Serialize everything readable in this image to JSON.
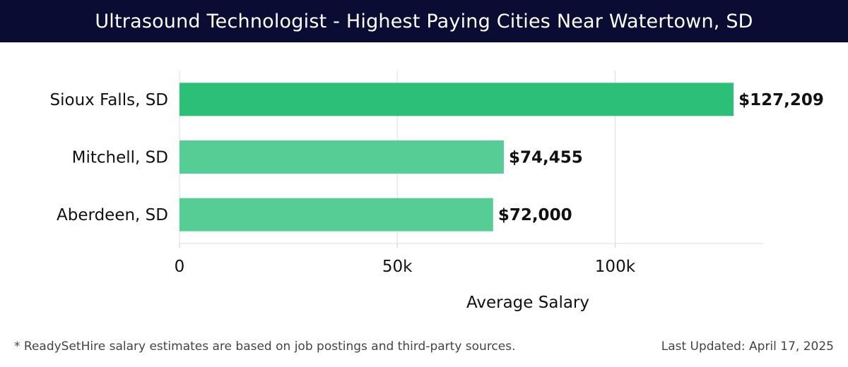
{
  "title": "Ultrasound Technologist - Highest Paying Cities Near Watertown, SD",
  "footer": {
    "note": "* ReadySetHire salary estimates are based on job postings and third-party sources.",
    "updated": "Last Updated: April 17, 2025"
  },
  "colors": {
    "header_bg": "#0b0c33",
    "top_bar": "#2bbf78",
    "other_bars": "#57cd96"
  },
  "chart_data": {
    "type": "bar",
    "orientation": "horizontal",
    "categories": [
      "Sioux Falls, SD",
      "Mitchell, SD",
      "Aberdeen, SD"
    ],
    "values": [
      127209,
      74455,
      72000
    ],
    "value_labels": [
      "$127,209",
      "$74,455",
      "$72,000"
    ],
    "xlabel": "Average Salary",
    "ylabel": "",
    "xlim": [
      0,
      134000
    ],
    "xticks": [
      0,
      50000,
      100000
    ],
    "xtick_labels": [
      "0",
      "50k",
      "100k"
    ],
    "grid": "vertical"
  }
}
